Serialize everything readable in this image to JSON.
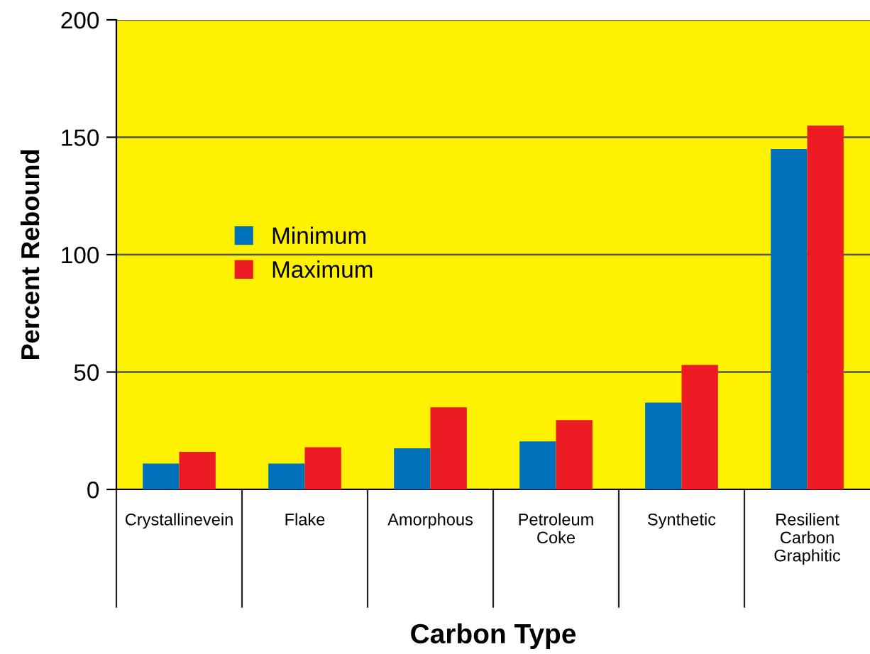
{
  "chart_data": {
    "type": "bar",
    "xlabel": "Carbon Type",
    "ylabel": "Percent Rebound",
    "categories": [
      "Crystallinevein",
      "Flake",
      "Amorphous",
      "Petroleum\nCoke",
      "Synthetic",
      "Resilient\nCarbon\nGraphitic"
    ],
    "series": [
      {
        "name": "Minimum",
        "color": "#0072bc",
        "values": [
          11,
          11,
          17.5,
          20.5,
          37,
          145
        ]
      },
      {
        "name": "Maximum",
        "color": "#ed1c24",
        "values": [
          16,
          18,
          35,
          29.5,
          53,
          155
        ]
      }
    ],
    "ylim": [
      0,
      200
    ],
    "yticks": [
      0,
      50,
      100,
      150,
      200
    ],
    "grid": "y",
    "legend": "left"
  }
}
